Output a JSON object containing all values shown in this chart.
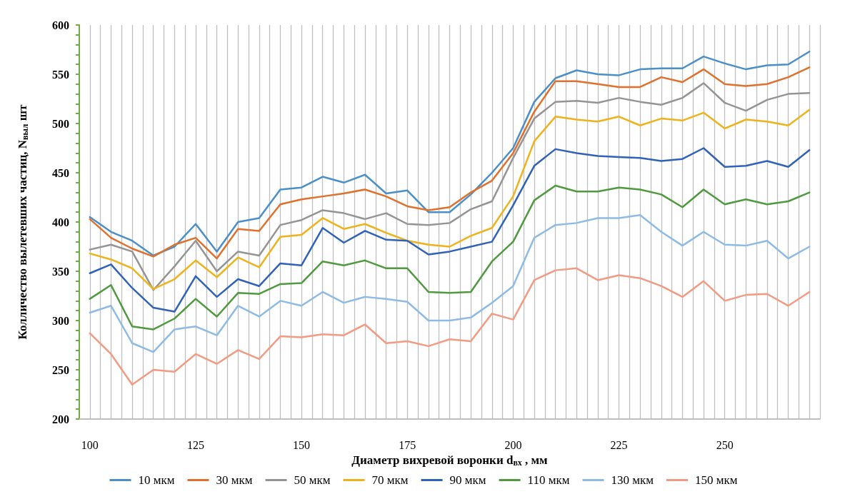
{
  "chart_data": {
    "type": "line",
    "xlabel": "Диаметр вихревой воронки d$_{вх}$ , мм",
    "ylabel": "Колличество вылетевших частиц, N$_{выл}$ шт",
    "x": [
      100,
      105,
      110,
      115,
      120,
      125,
      130,
      135,
      140,
      145,
      150,
      155,
      160,
      165,
      170,
      175,
      180,
      185,
      190,
      195,
      200,
      205,
      210,
      215,
      220,
      225,
      230,
      235,
      240,
      245,
      250,
      255,
      260,
      265,
      270
    ],
    "xlim": [
      97.5,
      272.5
    ],
    "xticks": [
      100,
      {
        "value": 102.5,
        "label": null
      },
      {
        "value": 105,
        "label": null
      },
      {
        "value": 107.5,
        "label": null
      },
      {
        "value": 110,
        "label": null
      },
      {
        "value": 112.5,
        "label": null
      },
      {
        "value": 115,
        "label": null
      },
      {
        "value": 117.5,
        "label": null
      },
      {
        "value": 120,
        "label": null
      },
      {
        "value": 122.5,
        "label": null
      },
      125,
      {
        "value": 127.5,
        "label": null
      },
      {
        "value": 130,
        "label": null
      },
      {
        "value": 132.5,
        "label": null
      },
      {
        "value": 135,
        "label": null
      },
      {
        "value": 137.5,
        "label": null
      },
      {
        "value": 140,
        "label": null
      },
      {
        "value": 142.5,
        "label": null
      },
      {
        "value": 145,
        "label": null
      },
      {
        "value": 147.5,
        "label": null
      },
      150,
      {
        "value": 152.5,
        "label": null
      },
      {
        "value": 155,
        "label": null
      },
      {
        "value": 157.5,
        "label": null
      },
      {
        "value": 160,
        "label": null
      },
      {
        "value": 162.5,
        "label": null
      },
      {
        "value": 165,
        "label": null
      },
      {
        "value": 167.5,
        "label": null
      },
      {
        "value": 170,
        "label": null
      },
      {
        "value": 172.5,
        "label": null
      },
      175,
      {
        "value": 177.5,
        "label": null
      },
      {
        "value": 180,
        "label": null
      },
      {
        "value": 182.5,
        "label": null
      },
      {
        "value": 185,
        "label": null
      },
      {
        "value": 187.5,
        "label": null
      },
      {
        "value": 190,
        "label": null
      },
      {
        "value": 192.5,
        "label": null
      },
      {
        "value": 195,
        "label": null
      },
      {
        "value": 197.5,
        "label": null
      },
      200,
      {
        "value": 202.5,
        "label": null
      },
      {
        "value": 205,
        "label": null
      },
      {
        "value": 207.5,
        "label": null
      },
      {
        "value": 210,
        "label": null
      },
      {
        "value": 212.5,
        "label": null
      },
      {
        "value": 215,
        "label": null
      },
      {
        "value": 217.5,
        "label": null
      },
      {
        "value": 220,
        "label": null
      },
      {
        "value": 222.5,
        "label": null
      },
      225,
      {
        "value": 227.5,
        "label": null
      },
      {
        "value": 230,
        "label": null
      },
      {
        "value": 232.5,
        "label": null
      },
      {
        "value": 235,
        "label": null
      },
      {
        "value": 237.5,
        "label": null
      },
      {
        "value": 240,
        "label": null
      },
      {
        "value": 242.5,
        "label": null
      },
      {
        "value": 245,
        "label": null
      },
      {
        "value": 247.5,
        "label": null
      },
      250,
      {
        "value": 252.5,
        "label": null
      },
      {
        "value": 255,
        "label": null
      },
      {
        "value": 257.5,
        "label": null
      },
      {
        "value": 260,
        "label": null
      },
      {
        "value": 262.5,
        "label": null
      },
      {
        "value": 265,
        "label": null
      },
      {
        "value": 267.5,
        "label": null
      },
      {
        "value": 270,
        "label": null
      },
      {
        "value": 272.5,
        "label": null
      }
    ],
    "ylim": [
      200,
      600
    ],
    "yticks": [
      200,
      {
        "value": 210,
        "label": null
      },
      {
        "value": 220,
        "label": null
      },
      {
        "value": 230,
        "label": null
      },
      {
        "value": 240,
        "label": null
      },
      250,
      {
        "value": 260,
        "label": null
      },
      {
        "value": 270,
        "label": null
      },
      {
        "value": 280,
        "label": null
      },
      {
        "value": 290,
        "label": null
      },
      300,
      {
        "value": 310,
        "label": null
      },
      {
        "value": 320,
        "label": null
      },
      {
        "value": 330,
        "label": null
      },
      {
        "value": 340,
        "label": null
      },
      350,
      {
        "value": 360,
        "label": null
      },
      {
        "value": 370,
        "label": null
      },
      {
        "value": 380,
        "label": null
      },
      {
        "value": 390,
        "label": null
      },
      400,
      {
        "value": 410,
        "label": null
      },
      {
        "value": 420,
        "label": null
      },
      {
        "value": 430,
        "label": null
      },
      {
        "value": 440,
        "label": null
      },
      450,
      {
        "value": 460,
        "label": null
      },
      {
        "value": 470,
        "label": null
      },
      {
        "value": 480,
        "label": null
      },
      {
        "value": 490,
        "label": null
      },
      500,
      {
        "value": 510,
        "label": null
      },
      {
        "value": 520,
        "label": null
      },
      {
        "value": 530,
        "label": null
      },
      {
        "value": 540,
        "label": null
      },
      550,
      {
        "value": 560,
        "label": null
      },
      {
        "value": 570,
        "label": null
      },
      {
        "value": 580,
        "label": null
      },
      {
        "value": 590,
        "label": null
      },
      600
    ],
    "grid": "x",
    "legend": "bottom",
    "marker": "none",
    "line_style": "solid",
    "series": [
      {
        "name": "10 мкм",
        "color": "#4a8fc9",
        "values": [
          405,
          390,
          381,
          366,
          375,
          398,
          370,
          400,
          404,
          433,
          435,
          446,
          440,
          448,
          429,
          432,
          410,
          410,
          428,
          450,
          475,
          522,
          546,
          554,
          550,
          549,
          555,
          556,
          556,
          568,
          561,
          555,
          559,
          560,
          573
        ]
      },
      {
        "name": "30 мкм",
        "color": "#e0702c",
        "values": [
          403,
          384,
          373,
          365,
          377,
          384,
          363,
          393,
          391,
          418,
          423,
          426,
          429,
          433,
          426,
          416,
          412,
          415,
          430,
          442,
          470,
          512,
          543,
          543,
          540,
          537,
          537,
          547,
          542,
          555,
          540,
          538,
          540,
          547,
          557
        ]
      },
      {
        "name": "50 мкм",
        "color": "#949494",
        "values": [
          372,
          377,
          370,
          331,
          355,
          381,
          350,
          370,
          366,
          397,
          402,
          412,
          409,
          403,
          409,
          398,
          397,
          399,
          413,
          421,
          465,
          505,
          522,
          523,
          521,
          526,
          522,
          519,
          526,
          541,
          521,
          513,
          524,
          530,
          531
        ]
      },
      {
        "name": "70 мкм",
        "color": "#f0b21a",
        "values": [
          368,
          362,
          353,
          332,
          342,
          361,
          344,
          364,
          354,
          385,
          387,
          404,
          393,
          398,
          389,
          381,
          377,
          375,
          386,
          394,
          426,
          482,
          507,
          504,
          502,
          507,
          498,
          505,
          503,
          511,
          495,
          504,
          502,
          498,
          514
        ]
      },
      {
        "name": "90 мкм",
        "color": "#2f62b8",
        "values": [
          348,
          357,
          333,
          313,
          309,
          345,
          324,
          342,
          335,
          358,
          356,
          394,
          379,
          391,
          382,
          381,
          367,
          370,
          375,
          380,
          417,
          457,
          474,
          470,
          467,
          466,
          465,
          462,
          464,
          475,
          456,
          457,
          462,
          456,
          473
        ]
      },
      {
        "name": "110 мкм",
        "color": "#4f9a3e",
        "values": [
          322,
          336,
          294,
          291,
          302,
          322,
          304,
          328,
          327,
          337,
          338,
          360,
          356,
          361,
          353,
          353,
          329,
          328,
          329,
          360,
          380,
          422,
          437,
          431,
          431,
          435,
          433,
          428,
          415,
          433,
          418,
          423,
          418,
          421,
          430
        ]
      },
      {
        "name": "130 мкм",
        "color": "#8dbbe6",
        "values": [
          308,
          315,
          277,
          268,
          291,
          294,
          285,
          315,
          304,
          320,
          315,
          329,
          318,
          324,
          322,
          319,
          300,
          300,
          303,
          318,
          335,
          384,
          397,
          399,
          404,
          404,
          407,
          390,
          376,
          390,
          377,
          376,
          381,
          363,
          375
        ]
      },
      {
        "name": "150 мкм",
        "color": "#f29a82",
        "values": [
          287,
          266,
          235,
          250,
          248,
          266,
          256,
          270,
          261,
          284,
          283,
          286,
          285,
          296,
          277,
          279,
          274,
          281,
          279,
          307,
          301,
          341,
          351,
          353,
          341,
          346,
          343,
          335,
          324,
          340,
          320,
          326,
          327,
          315,
          329
        ]
      }
    ]
  }
}
